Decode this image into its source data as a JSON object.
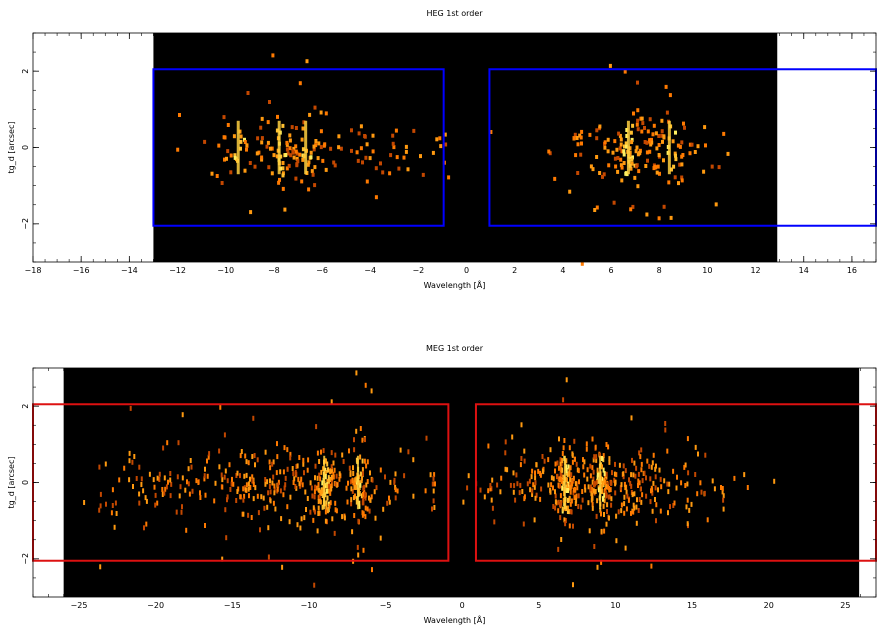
{
  "chart_data": [
    {
      "type": "heatmap",
      "title": "HEG 1st order",
      "xlabel": "Wavelength [Å]",
      "ylabel": "tg_d [arcsec]",
      "xlim": [
        -18,
        17
      ],
      "ylim": [
        -3.0,
        3.0
      ],
      "data_xrange": [
        -13.0,
        12.9
      ],
      "xticks": [
        -18,
        -16,
        -14,
        -12,
        -10,
        -8,
        -6,
        -4,
        -2,
        0,
        2,
        4,
        6,
        8,
        10,
        12,
        14,
        16
      ],
      "yticks": [
        -2,
        0,
        2
      ],
      "regions_color": "#0000ff",
      "regions": [
        {
          "x": [
            -13.0,
            -0.95
          ],
          "y": [
            -2.05,
            2.05
          ]
        },
        {
          "x": [
            0.95,
            17.0
          ],
          "y": [
            -2.05,
            2.05
          ]
        }
      ],
      "background": "#000000",
      "emission_bands": [
        {
          "x_range": [
            -12.5,
            -0.5
          ],
          "peaks": [
            -9.5,
            -7.8,
            -6.7
          ],
          "y_sigma": 0.45,
          "color": "#ff8c00"
        },
        {
          "x_range": [
            3.2,
            10.5
          ],
          "peaks": [
            6.7,
            8.4
          ],
          "y_sigma": 0.45,
          "color": "#ff8c00"
        }
      ]
    },
    {
      "type": "heatmap",
      "title": "MEG 1st order",
      "xlabel": "Wavelength [Å]",
      "ylabel": "tg_d [arcsec]",
      "xlim": [
        -28,
        27
      ],
      "ylim": [
        -3.0,
        3.0
      ],
      "data_xrange": [
        -26.0,
        25.9
      ],
      "xticks": [
        -25,
        -20,
        -15,
        -10,
        -5,
        0,
        5,
        10,
        15,
        20,
        25
      ],
      "yticks": [
        -2,
        0,
        2
      ],
      "regions_color": "#dd1111",
      "regions": [
        {
          "x": [
            -28.0,
            -0.9
          ],
          "y": [
            -2.05,
            2.05
          ]
        },
        {
          "x": [
            0.9,
            27.0
          ],
          "y": [
            -2.05,
            2.05
          ]
        }
      ],
      "background": "#000000",
      "emission_bands": [
        {
          "x_range": [
            -24.0,
            -1.0
          ],
          "peaks": [
            -9.0,
            -6.8
          ],
          "y_sigma": 0.45,
          "color": "#ff6a00"
        },
        {
          "x_range": [
            1.5,
            17.0
          ],
          "peaks": [
            6.7,
            9.0
          ],
          "y_sigma": 0.45,
          "color": "#ff6a00"
        }
      ]
    }
  ]
}
